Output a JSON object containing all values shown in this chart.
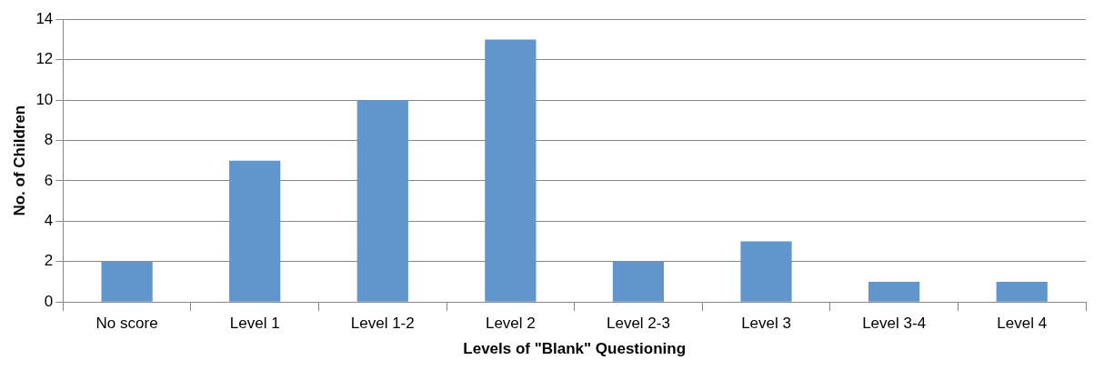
{
  "chart_data": {
    "type": "bar",
    "xlabel": "Levels of \"Blank\" Questioning",
    "ylabel": "No. of Children",
    "categories": [
      "No score",
      "Level 1",
      "Level 1-2",
      "Level 2",
      "Level 2-3",
      "Level 3",
      "Level 3-4",
      "Level 4"
    ],
    "values": [
      2,
      7,
      10,
      13,
      2,
      3,
      1,
      1
    ],
    "color": "#6096cc",
    "ylim": [
      0,
      14
    ],
    "yticks": [
      0,
      2,
      4,
      6,
      8,
      10,
      12,
      14
    ],
    "grid": "y",
    "legend": false
  }
}
